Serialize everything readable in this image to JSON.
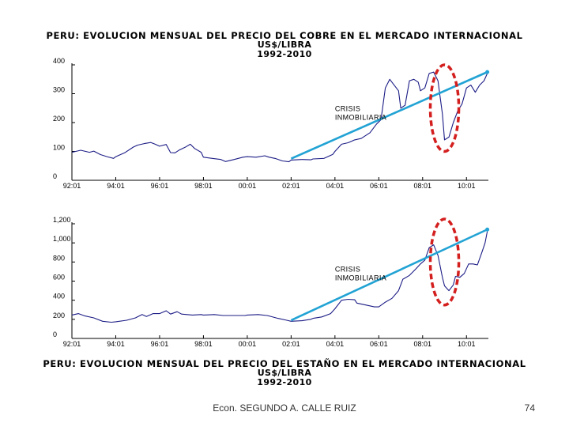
{
  "titles": {
    "top": {
      "line1": "PERU: EVOLUCION MENSUAL DEL PRECIO DEL COBRE EN EL MERCADO INTERNACIONAL",
      "line2": "US$/LIBRA",
      "line3": "1992-2010"
    },
    "bottom": {
      "line1": "PERU: EVOLUCION MENSUAL DEL PRECIO DEL ESTAÑO EN EL MERCADO INTERNACIONAL",
      "line2": "US$/LIBRA",
      "line3": "1992-2010"
    }
  },
  "colors": {
    "series": "#1c1c86",
    "trend": "#22a3d4",
    "highlight": "#d41f1f",
    "axis": "#000000"
  },
  "chart_data": [
    {
      "type": "line",
      "title": "PERU: EVOLUCION MENSUAL DEL PRECIO DEL COBRE EN EL MERCADO INTERNACIONAL",
      "ylabel": "US$/LIBRA",
      "xlim": [
        1992.0,
        2011.0
      ],
      "ylim": [
        0,
        400
      ],
      "yticks": [
        0,
        100,
        200,
        300,
        400
      ],
      "ytick_labels": [
        "0",
        "100",
        "200",
        "300",
        "400"
      ],
      "xticks": [
        1992,
        1994,
        1996,
        1998,
        2000,
        2002,
        2004,
        2006,
        2008,
        2010
      ],
      "xtick_labels": [
        "92:01",
        "94:01",
        "96:01",
        "98:01",
        "00:01",
        "02:01",
        "04:01",
        "06:01",
        "08:01",
        "10:01"
      ],
      "annotation": {
        "line1": "CRISIS",
        "line2": "INMOBILIARIA",
        "x": 2004.0,
        "y": 240
      },
      "series": [
        {
          "name": "Cobre",
          "points": [
            [
              1992.0,
              97
            ],
            [
              1992.4,
              104
            ],
            [
              1992.8,
              97
            ],
            [
              1993.0,
              101
            ],
            [
              1993.3,
              89
            ],
            [
              1993.6,
              82
            ],
            [
              1993.9,
              76
            ],
            [
              1994.0,
              82
            ],
            [
              1994.4,
              95
            ],
            [
              1994.8,
              115
            ],
            [
              1995.0,
              122
            ],
            [
              1995.3,
              127
            ],
            [
              1995.6,
              131
            ],
            [
              1995.8,
              125
            ],
            [
              1996.0,
              118
            ],
            [
              1996.3,
              124
            ],
            [
              1996.5,
              96
            ],
            [
              1996.7,
              95
            ],
            [
              1996.9,
              105
            ],
            [
              1997.2,
              116
            ],
            [
              1997.4,
              125
            ],
            [
              1997.6,
              110
            ],
            [
              1997.9,
              97
            ],
            [
              1998.0,
              80
            ],
            [
              1998.4,
              76
            ],
            [
              1998.8,
              72
            ],
            [
              1999.0,
              65
            ],
            [
              1999.4,
              72
            ],
            [
              1999.8,
              80
            ],
            [
              2000.0,
              82
            ],
            [
              2000.4,
              80
            ],
            [
              2000.8,
              85
            ],
            [
              2001.0,
              80
            ],
            [
              2001.3,
              75
            ],
            [
              2001.6,
              67
            ],
            [
              2001.9,
              64
            ],
            [
              2002.0,
              70
            ],
            [
              2002.5,
              72
            ],
            [
              2002.9,
              71
            ],
            [
              2003.0,
              74
            ],
            [
              2003.5,
              76
            ],
            [
              2003.9,
              90
            ],
            [
              2004.0,
              100
            ],
            [
              2004.3,
              125
            ],
            [
              2004.6,
              130
            ],
            [
              2004.9,
              140
            ],
            [
              2005.2,
              145
            ],
            [
              2005.6,
              165
            ],
            [
              2005.9,
              195
            ],
            [
              2006.1,
              210
            ],
            [
              2006.3,
              320
            ],
            [
              2006.5,
              350
            ],
            [
              2006.7,
              330
            ],
            [
              2006.9,
              310
            ],
            [
              2007.0,
              250
            ],
            [
              2007.2,
              260
            ],
            [
              2007.4,
              345
            ],
            [
              2007.6,
              350
            ],
            [
              2007.8,
              340
            ],
            [
              2007.9,
              310
            ],
            [
              2008.1,
              320
            ],
            [
              2008.3,
              370
            ],
            [
              2008.5,
              375
            ],
            [
              2008.7,
              345
            ],
            [
              2008.9,
              230
            ],
            [
              2009.0,
              140
            ],
            [
              2009.2,
              150
            ],
            [
              2009.4,
              200
            ],
            [
              2009.6,
              240
            ],
            [
              2009.8,
              265
            ],
            [
              2010.0,
              320
            ],
            [
              2010.2,
              330
            ],
            [
              2010.4,
              305
            ],
            [
              2010.6,
              330
            ],
            [
              2010.8,
              345
            ],
            [
              2010.95,
              370
            ]
          ]
        }
      ],
      "trend": {
        "from": [
          2002.0,
          75
        ],
        "to": [
          2010.95,
          375
        ]
      },
      "highlight": {
        "center": [
          2009.0,
          250
        ],
        "rx": 0.65,
        "ry": 150
      }
    },
    {
      "type": "line",
      "title": "PERU: EVOLUCION MENSUAL DEL PRECIO DEL ESTAÑO EN EL MERCADO INTERNACIONAL",
      "ylabel": "US$/LIBRA",
      "xlim": [
        1992.0,
        2011.0
      ],
      "ylim": [
        0,
        1200
      ],
      "yticks": [
        0,
        200,
        400,
        600,
        800,
        1000,
        1200
      ],
      "ytick_labels": [
        "0",
        "200",
        "400",
        "600",
        "800",
        "1,000",
        "1,200"
      ],
      "xticks": [
        1992,
        1994,
        1996,
        1998,
        2000,
        2002,
        2004,
        2006,
        2008,
        2010
      ],
      "xtick_labels": [
        "92:01",
        "94:01",
        "96:01",
        "98:01",
        "00:01",
        "02:01",
        "04:01",
        "06:01",
        "08:01",
        "10:01"
      ],
      "annotation": {
        "line1": "CRISIS",
        "line2": "INMOBILIARIA",
        "x": 2004.0,
        "y": 700
      },
      "series": [
        {
          "name": "Estaño",
          "points": [
            [
              1992.0,
              245
            ],
            [
              1992.3,
              260
            ],
            [
              1992.6,
              235
            ],
            [
              1993.0,
              215
            ],
            [
              1993.4,
              180
            ],
            [
              1993.8,
              170
            ],
            [
              1994.0,
              175
            ],
            [
              1994.5,
              190
            ],
            [
              1994.9,
              215
            ],
            [
              1995.2,
              250
            ],
            [
              1995.4,
              230
            ],
            [
              1995.7,
              260
            ],
            [
              1996.0,
              260
            ],
            [
              1996.3,
              290
            ],
            [
              1996.5,
              255
            ],
            [
              1996.8,
              280
            ],
            [
              1997.0,
              255
            ],
            [
              1997.5,
              245
            ],
            [
              1997.9,
              250
            ],
            [
              1998.0,
              245
            ],
            [
              1998.5,
              250
            ],
            [
              1998.9,
              240
            ],
            [
              1999.0,
              240
            ],
            [
              1999.5,
              240
            ],
            [
              1999.9,
              240
            ],
            [
              2000.0,
              245
            ],
            [
              2000.5,
              250
            ],
            [
              2000.9,
              240
            ],
            [
              2001.0,
              235
            ],
            [
              2001.4,
              210
            ],
            [
              2001.8,
              190
            ],
            [
              2002.0,
              180
            ],
            [
              2002.5,
              185
            ],
            [
              2002.9,
              200
            ],
            [
              2003.0,
              210
            ],
            [
              2003.4,
              225
            ],
            [
              2003.8,
              260
            ],
            [
              2004.0,
              310
            ],
            [
              2004.3,
              400
            ],
            [
              2004.6,
              410
            ],
            [
              2004.9,
              405
            ],
            [
              2005.0,
              370
            ],
            [
              2005.4,
              350
            ],
            [
              2005.8,
              330
            ],
            [
              2006.0,
              330
            ],
            [
              2006.3,
              380
            ],
            [
              2006.6,
              420
            ],
            [
              2006.9,
              500
            ],
            [
              2007.1,
              620
            ],
            [
              2007.4,
              660
            ],
            [
              2007.7,
              730
            ],
            [
              2007.9,
              780
            ],
            [
              2008.1,
              820
            ],
            [
              2008.3,
              950
            ],
            [
              2008.5,
              980
            ],
            [
              2008.7,
              870
            ],
            [
              2008.9,
              640
            ],
            [
              2009.0,
              550
            ],
            [
              2009.2,
              500
            ],
            [
              2009.4,
              560
            ],
            [
              2009.5,
              650
            ],
            [
              2009.7,
              640
            ],
            [
              2009.9,
              680
            ],
            [
              2010.1,
              780
            ],
            [
              2010.3,
              780
            ],
            [
              2010.5,
              770
            ],
            [
              2010.7,
              900
            ],
            [
              2010.85,
              1000
            ],
            [
              2010.95,
              1120
            ]
          ]
        }
      ],
      "trend": {
        "from": [
          2002.0,
          190
        ],
        "to": [
          2010.95,
          1140
        ]
      },
      "highlight": {
        "center": [
          2009.0,
          800
        ],
        "rx": 0.65,
        "ry": 450
      }
    }
  ],
  "footer": {
    "author": "Econ. SEGUNDO A. CALLE RUIZ",
    "page": "74"
  }
}
